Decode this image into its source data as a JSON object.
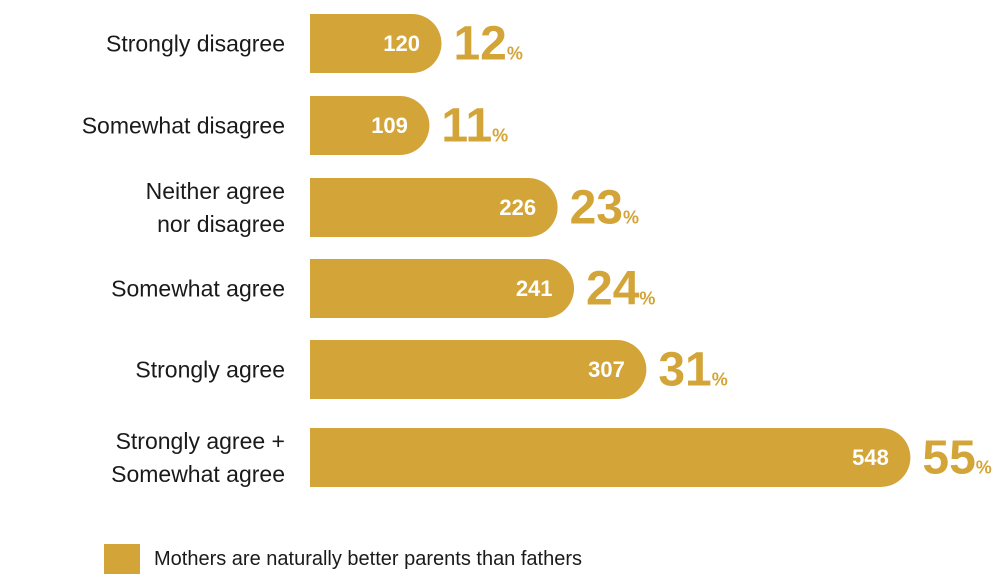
{
  "chart_data": {
    "type": "bar",
    "orientation": "horizontal",
    "categories": [
      "Strongly disagree",
      "Somewhat disagree",
      "Neither agree nor disagree",
      "Somewhat agree",
      "Strongly agree",
      "Strongly agree + Somewhat agree"
    ],
    "series": [
      {
        "name": "Mothers are naturally better parents than fathers",
        "values": [
          120,
          109,
          226,
          241,
          307,
          548
        ],
        "percent_labels": [
          "12",
          "11",
          "23",
          "24",
          "31",
          "55"
        ]
      }
    ],
    "percent_suffix": "%",
    "legend_placement": "bottom-left",
    "grid": false,
    "colors": {
      "bar": "#D3A437",
      "value_label": "#ffffff",
      "percent_label": "#D3A437",
      "category_label": "#1a1a1a"
    }
  }
}
